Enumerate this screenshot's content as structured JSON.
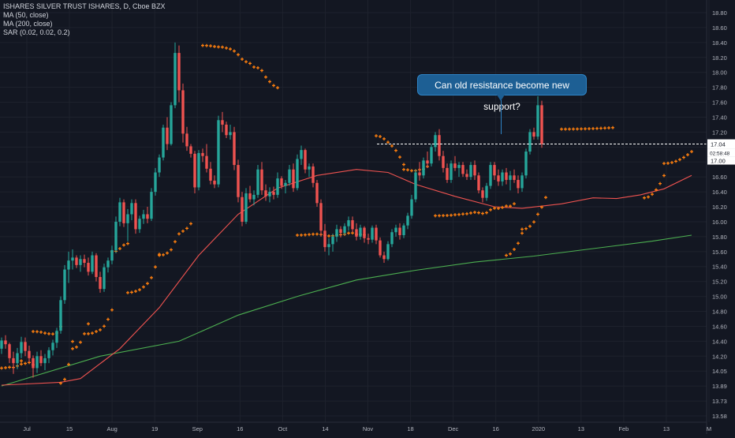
{
  "legend": {
    "title": "ISHARES SILVER TRUST ISHARES, D, Cboe BZX",
    "indicators": [
      "MA (50, close)",
      "MA (200, close)",
      "SAR (0.02, 0.02, 0.2)"
    ]
  },
  "annotation": {
    "text": "Can old resistance become new support?"
  },
  "price_tag": {
    "price": "17.04",
    "countdown": "02:58:48",
    "sub": "17.00"
  },
  "colors": {
    "background": "#131722",
    "up": "#26a69a",
    "down": "#ef5350",
    "ma50": "#ef5350",
    "ma200": "#4caf50",
    "sar": "#ff7f0e",
    "grid": "#1e222d",
    "axis_text": "#b2b5be",
    "callout": "#1d5f94"
  },
  "chart_data": {
    "type": "candlestick",
    "y_axis": {
      "ticks": [
        "18.80",
        "18.60",
        "18.40",
        "18.20",
        "18.00",
        "17.80",
        "17.60",
        "17.40",
        "17.20",
        "17.00",
        "16.80",
        "16.60",
        "16.40",
        "16.20",
        "16.00",
        "15.80",
        "15.60",
        "15.40",
        "15.20",
        "15.00",
        "14.80",
        "14.60",
        "14.40",
        "14.20",
        "14.05",
        "13.89",
        "13.73",
        "13.58"
      ],
      "range": [
        13.52,
        18.88
      ]
    },
    "x_axis": {
      "ticks": [
        "Jul",
        "15",
        "Aug",
        "19",
        "Sep",
        "16",
        "Oct",
        "14",
        "Nov",
        "18",
        "Dec",
        "16",
        "2020",
        "13",
        "Feb",
        "13",
        "M"
      ]
    },
    "candles": [
      [
        14.3,
        14.45,
        14.23,
        14.41
      ],
      [
        14.41,
        14.48,
        14.3,
        14.36
      ],
      [
        14.36,
        14.38,
        14.13,
        14.18
      ],
      [
        14.18,
        14.26,
        14.02,
        14.13
      ],
      [
        14.13,
        14.31,
        14.07,
        14.24
      ],
      [
        14.24,
        14.46,
        14.18,
        14.39
      ],
      [
        14.39,
        14.45,
        14.2,
        14.27
      ],
      [
        14.27,
        14.34,
        14.14,
        14.18
      ],
      [
        14.18,
        14.21,
        13.98,
        14.08
      ],
      [
        14.08,
        14.26,
        14.03,
        14.2
      ],
      [
        14.2,
        14.28,
        14.1,
        14.13
      ],
      [
        14.13,
        14.23,
        14.06,
        14.18
      ],
      [
        14.18,
        14.32,
        14.13,
        14.28
      ],
      [
        14.28,
        14.42,
        14.21,
        14.38
      ],
      [
        14.38,
        14.58,
        14.31,
        14.54
      ],
      [
        14.54,
        15.0,
        14.5,
        14.95
      ],
      [
        14.95,
        15.42,
        14.9,
        15.36
      ],
      [
        15.36,
        15.6,
        15.18,
        15.48
      ],
      [
        15.48,
        15.63,
        15.36,
        15.52
      ],
      [
        15.52,
        15.55,
        15.38,
        15.42
      ],
      [
        15.42,
        15.55,
        15.33,
        15.5
      ],
      [
        15.5,
        15.56,
        15.39,
        15.45
      ],
      [
        15.45,
        15.52,
        15.28,
        15.33
      ],
      [
        15.33,
        15.6,
        15.3,
        15.55
      ],
      [
        15.55,
        15.58,
        15.2,
        15.26
      ],
      [
        15.26,
        15.33,
        15.05,
        15.1
      ],
      [
        15.1,
        15.44,
        15.06,
        15.39
      ],
      [
        15.39,
        15.52,
        15.32,
        15.48
      ],
      [
        15.48,
        15.68,
        15.43,
        15.62
      ],
      [
        15.62,
        16.07,
        15.58,
        16.0
      ],
      [
        16.0,
        16.32,
        15.94,
        16.26
      ],
      [
        16.26,
        16.3,
        15.93,
        15.98
      ],
      [
        15.98,
        16.17,
        15.74,
        16.1
      ],
      [
        16.1,
        16.3,
        16.02,
        16.25
      ],
      [
        16.25,
        16.3,
        15.84,
        15.9
      ],
      [
        15.9,
        16.08,
        15.85,
        16.04
      ],
      [
        16.04,
        16.16,
        15.97,
        16.1
      ],
      [
        16.1,
        16.2,
        15.98,
        16.04
      ],
      [
        16.04,
        16.45,
        16.01,
        16.4
      ],
      [
        16.4,
        16.72,
        16.35,
        16.66
      ],
      [
        16.66,
        16.9,
        16.6,
        16.86
      ],
      [
        16.86,
        17.3,
        16.82,
        17.26
      ],
      [
        17.26,
        17.4,
        16.96,
        17.04
      ],
      [
        17.04,
        17.6,
        17.02,
        17.56
      ],
      [
        17.56,
        18.4,
        17.52,
        18.26
      ],
      [
        18.26,
        18.36,
        17.6,
        17.76
      ],
      [
        17.76,
        17.85,
        17.06,
        17.18
      ],
      [
        17.18,
        17.27,
        16.95,
        17.01
      ],
      [
        17.01,
        17.04,
        16.86,
        16.91
      ],
      [
        16.91,
        16.95,
        16.38,
        16.46
      ],
      [
        16.46,
        16.96,
        16.42,
        16.92
      ],
      [
        16.92,
        16.98,
        16.8,
        16.88
      ],
      [
        16.88,
        17.04,
        16.66,
        16.71
      ],
      [
        16.71,
        16.8,
        16.5,
        16.55
      ],
      [
        16.55,
        16.62,
        16.45,
        16.5
      ],
      [
        16.5,
        17.42,
        16.46,
        17.36
      ],
      [
        17.36,
        17.47,
        17.2,
        17.3
      ],
      [
        17.3,
        17.34,
        17.12,
        17.16
      ],
      [
        17.16,
        17.3,
        17.1,
        17.2
      ],
      [
        17.2,
        17.27,
        16.69,
        16.76
      ],
      [
        16.76,
        16.83,
        16.26,
        16.33
      ],
      [
        16.33,
        16.4,
        15.94,
        16.0
      ],
      [
        16.0,
        16.45,
        15.97,
        16.38
      ],
      [
        16.38,
        16.48,
        16.26,
        16.3
      ],
      [
        16.3,
        16.42,
        16.22,
        16.36
      ],
      [
        16.36,
        16.76,
        16.32,
        16.7
      ],
      [
        16.7,
        16.8,
        16.36,
        16.42
      ],
      [
        16.42,
        16.5,
        16.28,
        16.34
      ],
      [
        16.34,
        16.46,
        16.26,
        16.4
      ],
      [
        16.4,
        16.47,
        16.3,
        16.36
      ],
      [
        16.36,
        16.66,
        16.32,
        16.58
      ],
      [
        16.58,
        16.61,
        16.44,
        16.48
      ],
      [
        16.48,
        16.56,
        16.38,
        16.52
      ],
      [
        16.52,
        16.76,
        16.48,
        16.7
      ],
      [
        16.7,
        16.78,
        16.4,
        16.45
      ],
      [
        16.45,
        16.9,
        16.42,
        16.84
      ],
      [
        16.84,
        17.02,
        16.76,
        16.96
      ],
      [
        16.96,
        16.98,
        16.65,
        16.7
      ],
      [
        16.7,
        16.78,
        16.6,
        16.74
      ],
      [
        16.74,
        16.78,
        16.46,
        16.52
      ],
      [
        16.52,
        16.56,
        16.2,
        16.25
      ],
      [
        16.25,
        16.3,
        15.8,
        15.88
      ],
      [
        15.88,
        15.97,
        15.6,
        15.66
      ],
      [
        15.66,
        15.78,
        15.55,
        15.7
      ],
      [
        15.7,
        15.84,
        15.6,
        15.8
      ],
      [
        15.8,
        15.96,
        15.73,
        15.9
      ],
      [
        15.9,
        15.94,
        15.79,
        15.85
      ],
      [
        15.85,
        15.98,
        15.82,
        15.94
      ],
      [
        15.94,
        16.07,
        15.88,
        16.02
      ],
      [
        16.02,
        16.07,
        15.86,
        15.9
      ],
      [
        15.9,
        15.98,
        15.75,
        15.8
      ],
      [
        15.8,
        15.96,
        15.76,
        15.92
      ],
      [
        15.92,
        15.94,
        15.72,
        15.78
      ],
      [
        15.78,
        15.84,
        15.7,
        15.76
      ],
      [
        15.76,
        15.95,
        15.72,
        15.92
      ],
      [
        15.92,
        15.96,
        15.7,
        15.75
      ],
      [
        15.75,
        15.79,
        15.52,
        15.55
      ],
      [
        15.55,
        15.6,
        15.45,
        15.5
      ],
      [
        15.5,
        15.74,
        15.48,
        15.7
      ],
      [
        15.7,
        15.9,
        15.66,
        15.86
      ],
      [
        15.86,
        15.96,
        15.8,
        15.92
      ],
      [
        15.92,
        15.98,
        15.76,
        15.82
      ],
      [
        15.82,
        15.98,
        15.78,
        15.95
      ],
      [
        15.95,
        16.12,
        15.9,
        16.08
      ],
      [
        16.08,
        16.36,
        16.04,
        16.3
      ],
      [
        16.3,
        16.7,
        16.26,
        16.66
      ],
      [
        16.66,
        16.8,
        16.55,
        16.62
      ],
      [
        16.62,
        16.86,
        16.58,
        16.82
      ],
      [
        16.82,
        16.94,
        16.72,
        16.78
      ],
      [
        16.78,
        17.04,
        16.74,
        17.0
      ],
      [
        17.0,
        17.2,
        16.94,
        17.16
      ],
      [
        17.16,
        17.24,
        16.82,
        16.88
      ],
      [
        16.88,
        16.95,
        16.66,
        16.72
      ],
      [
        16.72,
        16.78,
        16.52,
        16.56
      ],
      [
        16.56,
        16.82,
        16.52,
        16.78
      ],
      [
        16.78,
        16.88,
        16.68,
        16.72
      ],
      [
        16.72,
        16.8,
        16.6,
        16.76
      ],
      [
        16.76,
        16.8,
        16.6,
        16.64
      ],
      [
        16.64,
        16.7,
        16.56,
        16.6
      ],
      [
        16.6,
        16.8,
        16.56,
        16.76
      ],
      [
        16.76,
        16.82,
        16.56,
        16.62
      ],
      [
        16.62,
        16.66,
        16.38,
        16.42
      ],
      [
        16.42,
        16.46,
        16.26,
        16.32
      ],
      [
        16.32,
        16.52,
        16.28,
        16.48
      ],
      [
        16.48,
        16.8,
        16.44,
        16.76
      ],
      [
        16.76,
        16.8,
        16.56,
        16.62
      ],
      [
        16.62,
        16.7,
        16.48,
        16.54
      ],
      [
        16.54,
        16.7,
        16.48,
        16.66
      ],
      [
        16.66,
        16.72,
        16.5,
        16.56
      ],
      [
        16.56,
        16.68,
        16.42,
        16.62
      ],
      [
        16.62,
        16.7,
        16.52,
        16.56
      ],
      [
        16.56,
        16.62,
        16.38,
        16.45
      ],
      [
        16.45,
        16.66,
        16.4,
        16.62
      ],
      [
        16.62,
        16.98,
        16.58,
        16.94
      ],
      [
        16.94,
        17.24,
        16.9,
        17.2
      ],
      [
        17.2,
        17.26,
        17.1,
        17.14
      ],
      [
        17.14,
        17.68,
        17.1,
        17.56
      ],
      [
        17.56,
        17.62,
        16.99,
        17.04
      ]
    ],
    "ma50": [
      [
        0,
        13.9
      ],
      [
        15,
        13.93
      ],
      [
        20,
        13.97
      ],
      [
        30,
        14.3
      ],
      [
        40,
        14.85
      ],
      [
        50,
        15.55
      ],
      [
        60,
        16.1
      ],
      [
        70,
        16.45
      ],
      [
        80,
        16.62
      ],
      [
        90,
        16.7
      ],
      [
        98,
        16.66
      ],
      [
        105,
        16.5
      ],
      [
        115,
        16.34
      ],
      [
        125,
        16.2
      ],
      [
        132,
        16.18
      ],
      [
        142,
        16.24
      ],
      [
        150,
        16.32
      ],
      [
        156,
        16.31
      ],
      [
        162,
        16.36
      ],
      [
        168,
        16.44
      ],
      [
        175,
        16.62
      ]
    ],
    "ma200": [
      [
        0,
        13.89
      ],
      [
        25,
        14.2
      ],
      [
        45,
        14.4
      ],
      [
        60,
        14.75
      ],
      [
        75,
        15.0
      ],
      [
        90,
        15.22
      ],
      [
        105,
        15.35
      ],
      [
        120,
        15.46
      ],
      [
        135,
        15.54
      ],
      [
        150,
        15.64
      ],
      [
        165,
        15.74
      ],
      [
        175,
        15.82
      ]
    ],
    "sar": [
      [
        14.08,
        0,
        5
      ],
      [
        14.12,
        5,
        8
      ],
      [
        14.53,
        8,
        15
      ],
      [
        13.92,
        15,
        18
      ],
      [
        14.3,
        18,
        22
      ],
      [
        14.5,
        22,
        28
      ],
      [
        15.6,
        28,
        32
      ],
      [
        15.05,
        32,
        40
      ],
      [
        15.55,
        40,
        48
      ],
      [
        18.36,
        51,
        70
      ],
      [
        15.82,
        75,
        92
      ],
      [
        17.15,
        95,
        102
      ],
      [
        16.7,
        102,
        108
      ],
      [
        16.08,
        110,
        130
      ],
      [
        15.55,
        128,
        132
      ],
      [
        15.9,
        132,
        138
      ],
      [
        17.24,
        142,
        155
      ],
      [
        16.32,
        163,
        168
      ],
      [
        16.78,
        168,
        175
      ]
    ],
    "resistance_level": 17.04
  }
}
